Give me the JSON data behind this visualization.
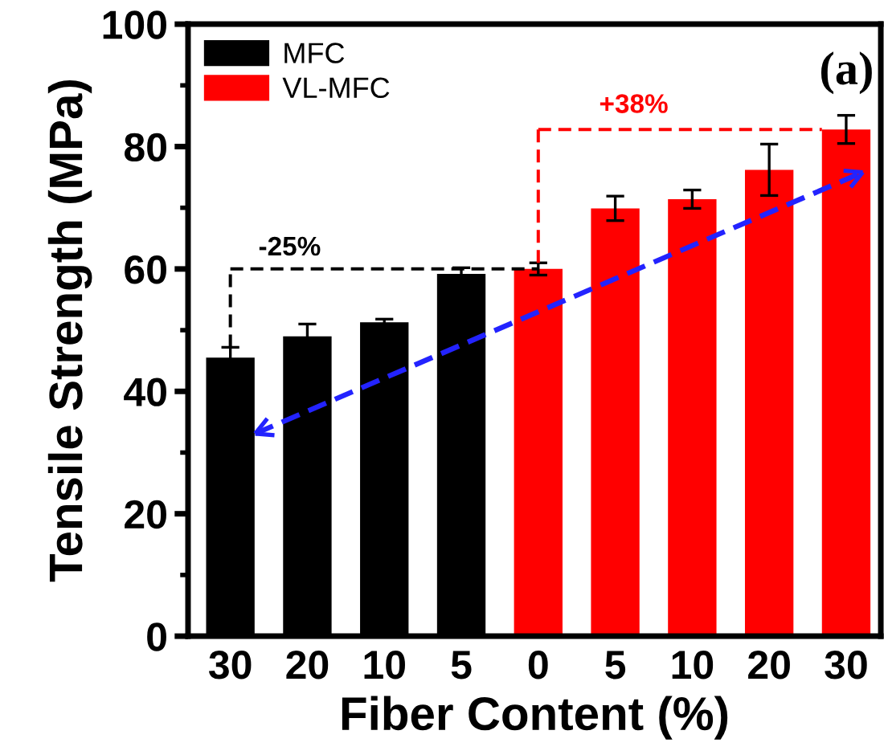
{
  "chart_data": {
    "type": "bar",
    "xlabel": "Fiber Content (%)",
    "ylabel": "Tensile Strength (MPa)",
    "categories": [
      "30",
      "20",
      "10",
      "5",
      "0",
      "5",
      "10",
      "20",
      "30"
    ],
    "series": [
      {
        "name": "MFC",
        "color": "#000000",
        "values": [
          45.5,
          49.0,
          51.3,
          59.2,
          null,
          null,
          null,
          null,
          null
        ],
        "errors": [
          1.7,
          2.0,
          0.5,
          1.0,
          null,
          null,
          null,
          null,
          null
        ]
      },
      {
        "name": "VL-MFC",
        "color": "#ff0000",
        "values": [
          null,
          null,
          null,
          null,
          60.0,
          69.9,
          71.4,
          76.2,
          82.8
        ],
        "errors": [
          null,
          null,
          null,
          null,
          1.0,
          2.0,
          1.5,
          4.2,
          2.3
        ]
      }
    ],
    "ylim": [
      0,
      100
    ],
    "yticks": [
      0,
      20,
      40,
      60,
      80,
      100
    ],
    "grid": false,
    "legend": "top left",
    "annotations": [
      "-25%",
      "+38%",
      "(a)"
    ]
  }
}
